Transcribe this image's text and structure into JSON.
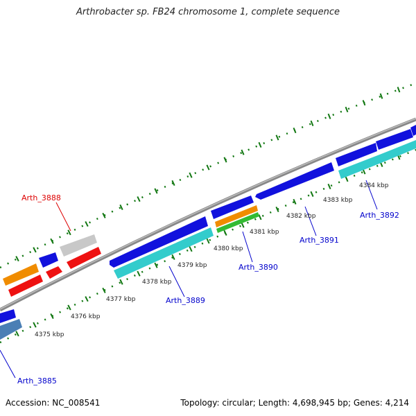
{
  "title": "Arthrobacter sp. FB24 chromosome 1, complete sequence",
  "accession": "Accession: NC_008541",
  "summary": "Topology: circular; Length: 4,698,945 bp; Genes: 4,214",
  "scale_labels": [
    "4375 kbp",
    "4376 kbp",
    "4377 kbp",
    "4378 kbp",
    "4379 kbp",
    "4380 kbp",
    "4381 kbp",
    "4382 kbp",
    "4383 kbp",
    "4384 kbp"
  ],
  "gene_labels": [
    {
      "text": "Arth_3885",
      "color": "#0000cc"
    },
    {
      "text": "Arth_3888",
      "color": "#dd0000"
    },
    {
      "text": "Arth_3889",
      "color": "#0000cc"
    },
    {
      "text": "Arth_3890",
      "color": "#0000cc"
    },
    {
      "text": "Arth_3891",
      "color": "#0000cc"
    },
    {
      "text": "Arth_3892",
      "color": "#0000cc"
    }
  ],
  "colors": {
    "backbone": "#888888",
    "tick": "#117711",
    "cds_forward": "#1111dd",
    "rna_cyan": "#33cccc",
    "cds_reverse": "#ee1111",
    "orange": "#f08c00",
    "gray": "#c8c8c8",
    "green": "#33bb33",
    "steelblue": "#4a7fb5"
  }
}
